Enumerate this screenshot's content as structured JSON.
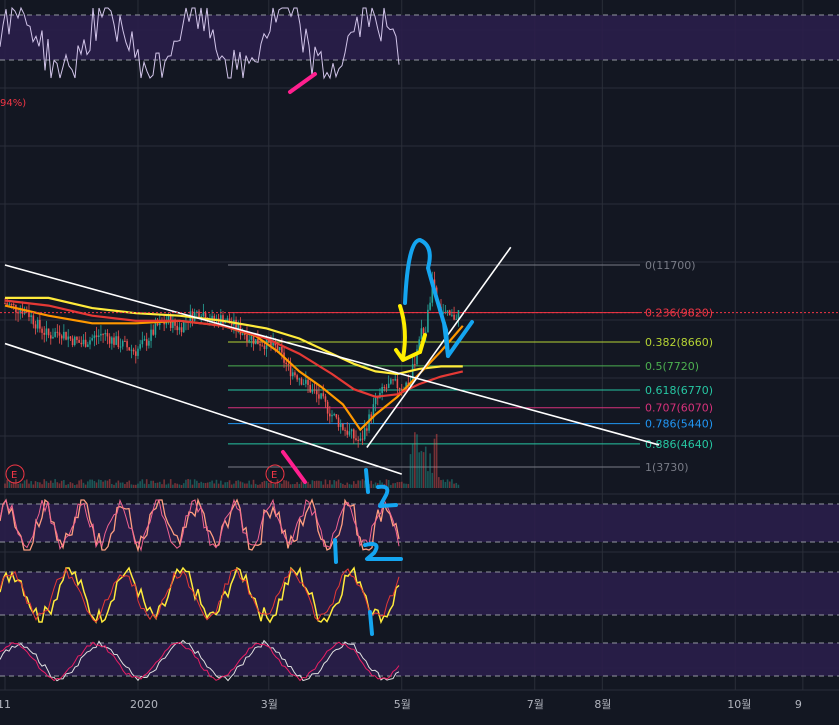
{
  "percent_fragment": "94%)",
  "event_marker": "E",
  "colors": {
    "background": "#131722",
    "grid": "#2a2e39",
    "panel_fill": "#2a1e4a",
    "ma_yellow": "#ffeb3b",
    "ma_orange": "#ff9800",
    "ma_red": "#e53935",
    "price_line": "#f23645",
    "candle_up": "#26a69a",
    "candle_down": "#ef5350",
    "annot_pink": "#ff1f8e",
    "annot_yellow": "#ffee00",
    "annot_blue": "#14a5f0"
  },
  "chart_data": {
    "type": "line",
    "x_ticks": [
      {
        "label": "11",
        "t": 0
      },
      {
        "label": "2020",
        "t": 61
      },
      {
        "label": "3월",
        "t": 121
      },
      {
        "label": "5월",
        "t": 182
      },
      {
        "label": "7월",
        "t": 243
      },
      {
        "label": "8월",
        "t": 274
      },
      {
        "label": "10월",
        "t": 335
      },
      {
        "label": "9",
        "t": 366
      }
    ],
    "price_last": 9820,
    "fib_levels": [
      {
        "ratio": "0",
        "price": 11700,
        "label": "0(11700)",
        "color": "#787b86"
      },
      {
        "ratio": "0.236",
        "price": 9820,
        "label": "0.236(9820)",
        "color": "#f23645"
      },
      {
        "ratio": "0.382",
        "price": 8660,
        "label": "0.382(8660)",
        "color": "#b5d334"
      },
      {
        "ratio": "0.5",
        "price": 7720,
        "label": "0.5(7720)",
        "color": "#4caf50"
      },
      {
        "ratio": "0.618",
        "price": 6770,
        "label": "0.618(6770)",
        "color": "#26c6a2"
      },
      {
        "ratio": "0.707",
        "price": 6070,
        "label": "0.707(6070)",
        "color": "#d6317a"
      },
      {
        "ratio": "0.786",
        "price": 5440,
        "label": "0.786(5440)",
        "color": "#2196f3"
      },
      {
        "ratio": "0.886",
        "price": 4640,
        "label": "0.886(4640)",
        "color": "#26c6a2"
      },
      {
        "ratio": "1",
        "price": 3730,
        "label": "1(3730)",
        "color": "#787b86"
      }
    ],
    "price_series": [
      [
        0,
        10200
      ],
      [
        5,
        10000
      ],
      [
        10,
        9900
      ],
      [
        15,
        9300
      ],
      [
        20,
        8900
      ],
      [
        25,
        9100
      ],
      [
        30,
        8800
      ],
      [
        35,
        8600
      ],
      [
        40,
        8800
      ],
      [
        45,
        9000
      ],
      [
        50,
        8700
      ],
      [
        55,
        8500
      ],
      [
        60,
        8300
      ],
      [
        65,
        8700
      ],
      [
        70,
        9300
      ],
      [
        75,
        9500
      ],
      [
        80,
        9200
      ],
      [
        85,
        9700
      ],
      [
        90,
        9900
      ],
      [
        95,
        9500
      ],
      [
        100,
        9600
      ],
      [
        105,
        9300
      ],
      [
        110,
        9000
      ],
      [
        115,
        8700
      ],
      [
        120,
        8600
      ],
      [
        125,
        8400
      ],
      [
        130,
        7600
      ],
      [
        135,
        7300
      ],
      [
        140,
        6800
      ],
      [
        145,
        6400
      ],
      [
        150,
        5800
      ],
      [
        155,
        5300
      ],
      [
        160,
        4900
      ],
      [
        163,
        4700
      ],
      [
        166,
        5400
      ],
      [
        170,
        6300
      ],
      [
        174,
        6800
      ],
      [
        178,
        7000
      ],
      [
        182,
        6900
      ],
      [
        186,
        7100
      ],
      [
        190,
        8900
      ],
      [
        193,
        9200
      ],
      [
        196,
        10900
      ],
      [
        199,
        10000
      ],
      [
        202,
        9700
      ],
      [
        205,
        9600
      ],
      [
        208,
        9820
      ]
    ],
    "moving_averages": [
      {
        "color": "#ffeb3b",
        "points": [
          [
            0,
            10400
          ],
          [
            20,
            10400
          ],
          [
            40,
            10000
          ],
          [
            60,
            9800
          ],
          [
            80,
            9700
          ],
          [
            100,
            9500
          ],
          [
            120,
            9200
          ],
          [
            135,
            8800
          ],
          [
            150,
            8200
          ],
          [
            160,
            7800
          ],
          [
            170,
            7500
          ],
          [
            180,
            7400
          ],
          [
            190,
            7600
          ],
          [
            200,
            7700
          ],
          [
            210,
            7700
          ]
        ]
      },
      {
        "color": "#ff9800",
        "points": [
          [
            0,
            10100
          ],
          [
            20,
            9700
          ],
          [
            40,
            9400
          ],
          [
            60,
            9400
          ],
          [
            80,
            9500
          ],
          [
            100,
            9300
          ],
          [
            115,
            8900
          ],
          [
            125,
            8300
          ],
          [
            135,
            7500
          ],
          [
            145,
            6900
          ],
          [
            155,
            6200
          ],
          [
            163,
            5200
          ],
          [
            170,
            5800
          ],
          [
            180,
            6500
          ],
          [
            190,
            7400
          ],
          [
            200,
            8300
          ],
          [
            210,
            9300
          ]
        ]
      },
      {
        "color": "#e53935",
        "points": [
          [
            0,
            10300
          ],
          [
            20,
            10100
          ],
          [
            40,
            9700
          ],
          [
            60,
            9500
          ],
          [
            80,
            9500
          ],
          [
            100,
            9300
          ],
          [
            120,
            8800
          ],
          [
            135,
            8200
          ],
          [
            150,
            7400
          ],
          [
            160,
            6800
          ],
          [
            170,
            6500
          ],
          [
            180,
            6600
          ],
          [
            190,
            7000
          ],
          [
            200,
            7300
          ],
          [
            210,
            7500
          ]
        ]
      }
    ],
    "trendlines": [
      {
        "from": [
          0,
          11700
        ],
        "to": [
          300,
          4600
        ]
      },
      {
        "from": [
          0,
          8600
        ],
        "to": [
          182,
          3450
        ]
      },
      {
        "from": [
          166,
          4500
        ],
        "to": [
          232,
          12400
        ]
      }
    ]
  }
}
